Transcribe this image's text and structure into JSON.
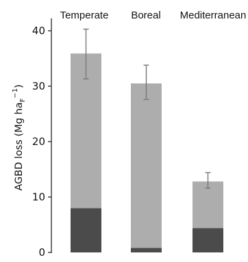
{
  "chart_data": {
    "type": "bar",
    "stacked": true,
    "categories": [
      "Temperate",
      "Boreal",
      "Mediterranean"
    ],
    "series": [
      {
        "values": [
          8.0,
          0.8,
          4.4
        ],
        "color": "#4b4b4b"
      },
      {
        "values": [
          27.9,
          29.7,
          8.4
        ],
        "color": "#adadad"
      }
    ],
    "totals": [
      35.9,
      30.5,
      12.8
    ],
    "error": {
      "lower": [
        31.3,
        27.6,
        11.6
      ],
      "upper": [
        40.3,
        33.8,
        14.4
      ]
    },
    "ylabel": "AGBD loss (Mg ha",
    "ylabel_sup": "−1",
    "ylabel_sub": "F",
    "ylabel_close": ")",
    "ylim": [
      0,
      42
    ],
    "yticks": [
      "0",
      "10",
      "20",
      "30",
      "40"
    ],
    "grid": false,
    "legend": "none"
  },
  "colors": {
    "error_bar": "#777777",
    "axis": "#222222"
  }
}
